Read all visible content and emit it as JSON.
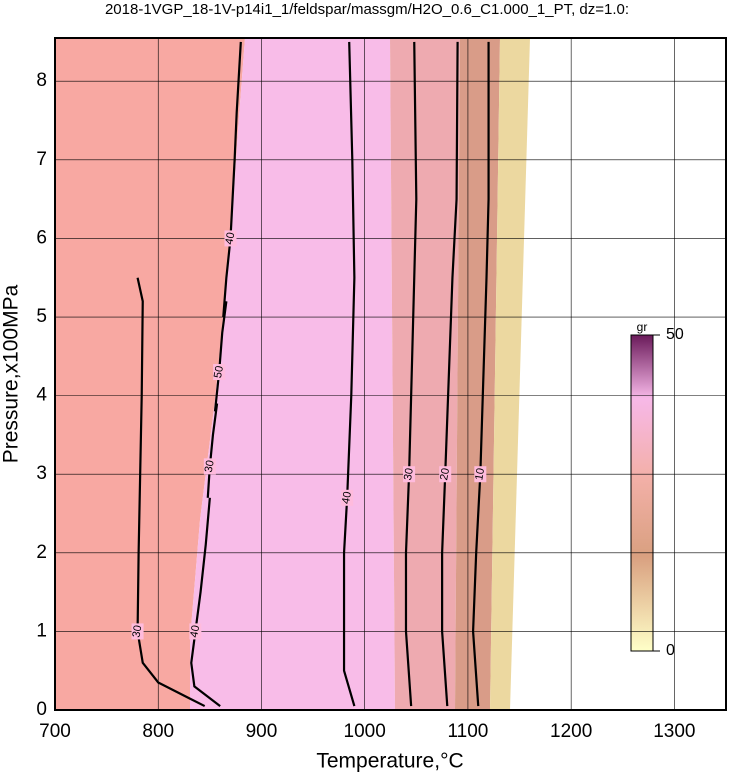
{
  "chart_data": {
    "type": "contour",
    "title": "2018-1VGP_18-1V-p14i1_1/feldspar/massgm/H2O_0.6_C1.000_1_PT, dz=1.0:",
    "x_label": "Temperature,°C",
    "y_label": "Pressure,x100MPa",
    "xlim": [
      700,
      1350
    ],
    "xticks": [
      700,
      800,
      900,
      1000,
      1100,
      1200,
      1300
    ],
    "ylim": [
      0,
      8.55
    ],
    "yticks": [
      0,
      1,
      2,
      3,
      4,
      5,
      6,
      7,
      8
    ],
    "grid": true,
    "contours": [
      {
        "level": 30,
        "x": [
          780,
          785,
          784,
          781,
          780,
          785,
          800,
          830,
          845
        ],
        "y": [
          5.5,
          5.2,
          4,
          2,
          1,
          0.6,
          0.35,
          0.15,
          0.05
        ]
      },
      {
        "level": 40,
        "x": [
          880,
          876,
          874,
          870,
          866,
          863
        ],
        "y": [
          8.5,
          7.6,
          7,
          6,
          5.5,
          5
        ]
      },
      {
        "level": 50,
        "x": [
          866,
          862,
          859,
          855
        ],
        "y": [
          5.2,
          4.8,
          4.3,
          3.8
        ]
      },
      {
        "level": 30,
        "x": [
          857,
          853,
          850,
          848
        ],
        "y": [
          3.9,
          3.5,
          3.1,
          2.7
        ]
      },
      {
        "level": 40,
        "x": [
          850,
          846,
          841,
          836,
          832,
          835,
          860
        ],
        "y": [
          2.7,
          2.1,
          1.5,
          1.0,
          0.6,
          0.3,
          0.05
        ]
      },
      {
        "level": 40,
        "x": [
          985,
          988,
          990,
          987,
          983,
          980,
          980,
          990
        ],
        "y": [
          8.5,
          7,
          5.5,
          4,
          2.7,
          2,
          0.5,
          0.05
        ]
      },
      {
        "level": 30,
        "x": [
          1048,
          1050,
          1048,
          1043,
          1040,
          1040,
          1045
        ],
        "y": [
          8.5,
          6.5,
          5.5,
          3,
          2,
          1,
          0.05
        ]
      },
      {
        "level": 20,
        "x": [
          1090,
          1089,
          1085,
          1078,
          1075,
          1075,
          1080
        ],
        "y": [
          8.5,
          6.5,
          5.5,
          3,
          2,
          1,
          0.05
        ]
      },
      {
        "level": 10,
        "x": [
          1120,
          1120,
          1118,
          1112,
          1108,
          1105,
          1110
        ],
        "y": [
          8.5,
          6.5,
          5.5,
          3,
          2,
          1,
          0.05
        ]
      }
    ],
    "colorbar": {
      "label": "gr",
      "lim": [
        0,
        50
      ],
      "ticks": [
        0,
        50
      ]
    }
  }
}
